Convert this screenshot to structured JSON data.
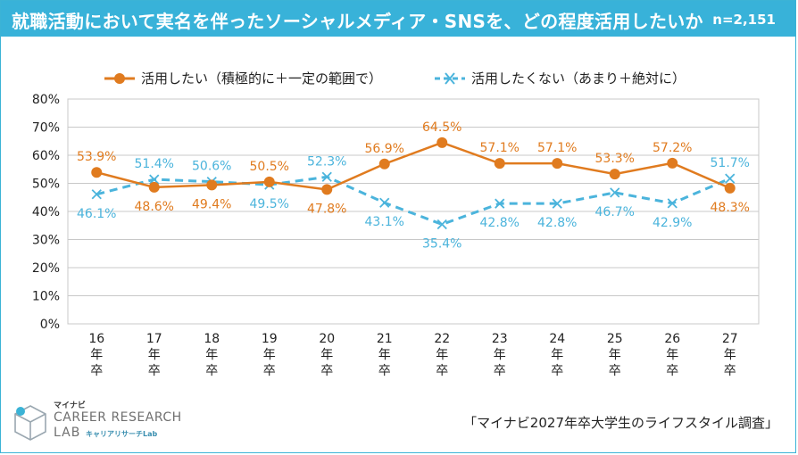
{
  "title": "就職活動において実名を伴ったソーシャルメディア・SNSを、どの程度活用したいか",
  "n_label": "n=2,151",
  "source": "「マイナビ2027年卒大学生のライフスタイル調査」",
  "logo": {
    "brand": "マイナビ",
    "line1": "CAREER RESEARCH",
    "line2": "LAB",
    "sub": "キャリアリサーチLab"
  },
  "colors": {
    "accent": "#38b2d9",
    "series_want": "#e07b1f",
    "series_not_want": "#4bb4dc",
    "grid": "#c8c8c8"
  },
  "chart_data": {
    "type": "line",
    "categories": [
      "16\n年\n卒",
      "17\n年\n卒",
      "18\n年\n卒",
      "19\n年\n卒",
      "20\n年\n卒",
      "21\n年\n卒",
      "22\n年\n卒",
      "23\n年\n卒",
      "24\n年\n卒",
      "25\n年\n卒",
      "26\n年\n卒",
      "27\n年\n卒"
    ],
    "series": [
      {
        "name": "活用したい（積極的に＋一定の範囲で）",
        "values": [
          53.9,
          48.6,
          49.4,
          50.5,
          47.8,
          56.9,
          64.5,
          57.1,
          57.1,
          53.3,
          57.2,
          48.3
        ],
        "labels": [
          "53.9%",
          "48.6%",
          "49.4%",
          "50.5%",
          "47.8%",
          "56.9%",
          "64.5%",
          "57.1%",
          "57.1%",
          "53.3%",
          "57.2%",
          "48.3%"
        ]
      },
      {
        "name": "活用したくない（あまり＋絶対に）",
        "values": [
          46.1,
          51.4,
          50.6,
          49.5,
          52.3,
          43.1,
          35.4,
          42.8,
          42.8,
          46.7,
          42.9,
          51.7
        ],
        "labels": [
          "46.1%",
          "51.4%",
          "50.6%",
          "49.5%",
          "52.3%",
          "43.1%",
          "35.4%",
          "42.8%",
          "42.8%",
          "46.7%",
          "42.9%",
          "51.7%"
        ]
      }
    ],
    "yticks": [
      "0%",
      "10%",
      "20%",
      "30%",
      "40%",
      "50%",
      "60%",
      "70%",
      "80%"
    ],
    "ylim": [
      0,
      80
    ],
    "grid": true,
    "legend": "top"
  }
}
